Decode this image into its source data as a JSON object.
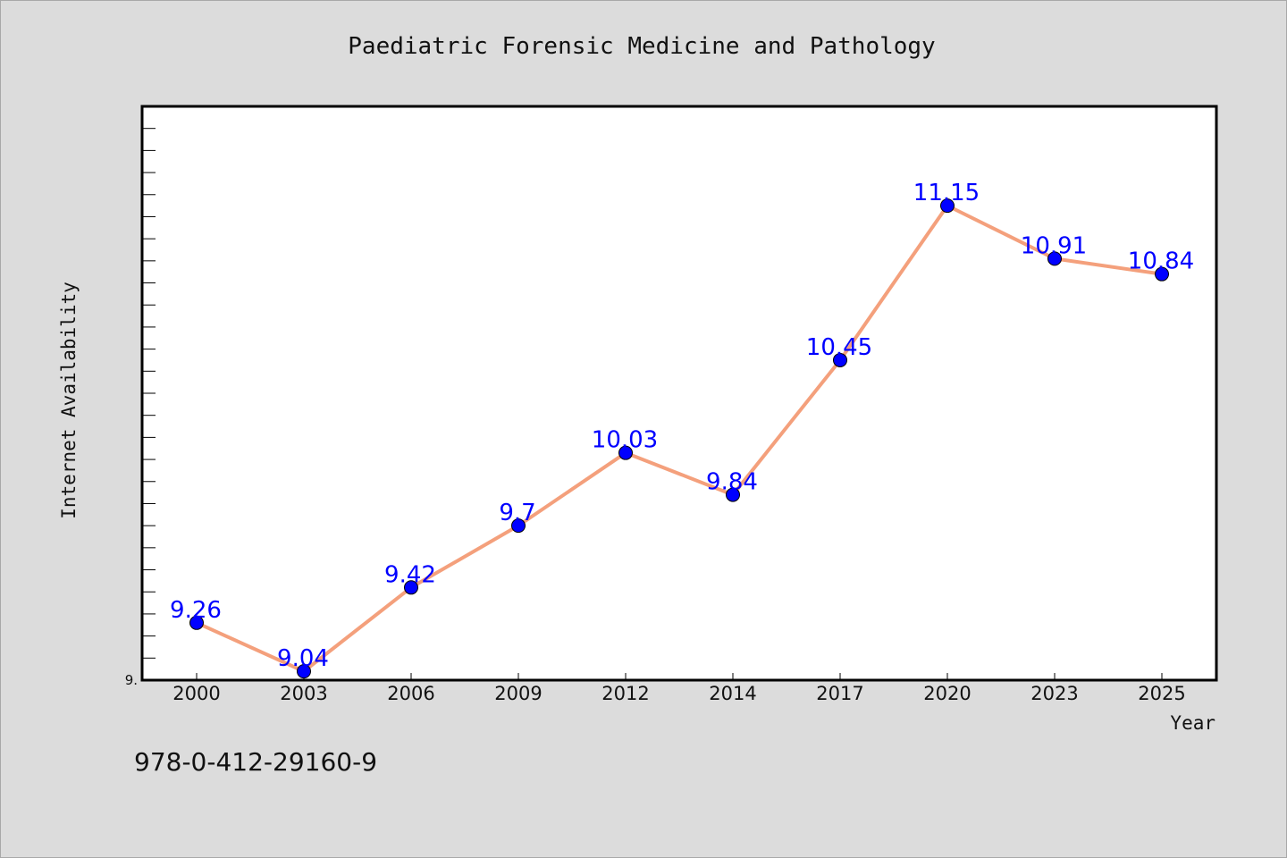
{
  "chart_data": {
    "type": "line",
    "title": "Paediatric Forensic Medicine and Pathology",
    "xlabel": "Year",
    "ylabel": "Internet Availability",
    "categories": [
      "2000",
      "2003",
      "2006",
      "2009",
      "2012",
      "2014",
      "2017",
      "2020",
      "2023",
      "2025"
    ],
    "series": [
      {
        "values": [
          9.26,
          9.04,
          9.42,
          9.7,
          10.03,
          9.84,
          10.45,
          11.15,
          10.91,
          10.84
        ],
        "line_color": "#f4a07c",
        "marker_color": "#0000ff"
      }
    ],
    "data_labels": [
      "9.26",
      "9.04",
      "9.42",
      "9.7",
      "10.03",
      "9.84",
      "10.45",
      "11.15",
      "10.91",
      "10.84"
    ],
    "ylim": [
      9.0,
      11.6
    ],
    "y_tick_label": "9.",
    "grid": false,
    "legend": "none"
  },
  "footer": {
    "isbn": "978-0-412-29160-9"
  },
  "colors": {
    "background": "#dcdcdc",
    "plot_background": "#ffffff",
    "line": "#f4a07c",
    "marker": "#0000ff",
    "data_label": "#0000ff"
  }
}
